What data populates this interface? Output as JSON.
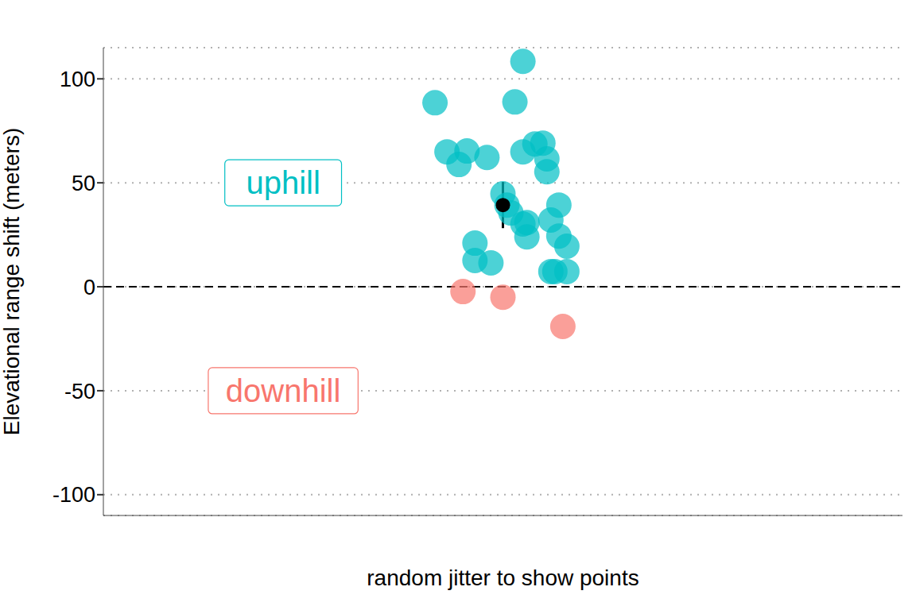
{
  "chart_data": {
    "type": "scatter",
    "ylabel": "Elevational range shift (meters)",
    "xlabel": "random jitter to show points",
    "xlim": [
      -1,
      1
    ],
    "ylim": [
      -110,
      115
    ],
    "yticks": [
      -100,
      -50,
      0,
      50,
      100
    ],
    "grid": true,
    "tick_labels": "y",
    "baseline": 0,
    "series": [
      {
        "color": "#00BFC4",
        "x": [
          0.05,
          -0.17,
          0.03,
          -0.14,
          -0.09,
          -0.11,
          -0.04,
          0.05,
          0.08,
          0.1,
          0.11,
          0.11,
          0.0,
          0.01,
          0.02,
          0.05,
          0.06,
          0.06,
          0.12,
          0.14,
          0.14,
          0.16,
          -0.07,
          -0.07,
          -0.03,
          0.12,
          0.13,
          0.16
        ],
        "values": [
          108.4,
          88.5,
          88.9,
          64.9,
          65.3,
          58.8,
          62.2,
          64.9,
          68.7,
          69.1,
          61.5,
          55.3,
          44.7,
          39.3,
          35.5,
          30.2,
          30.9,
          24.0,
          32.1,
          39.3,
          24.4,
          19.5,
          21.0,
          12.6,
          11.5,
          7.3,
          7.3,
          7.3
        ]
      },
      {
        "color": "#F8766D",
        "x": [
          -0.1,
          0.0,
          0.15
        ],
        "values": [
          -2.3,
          -5.0,
          -19.1
        ]
      }
    ],
    "mean": {
      "x": 0,
      "y": 39.3,
      "error": 11.1,
      "color": "#000000"
    },
    "annotations": [
      {
        "text": "uphill",
        "x": -0.55,
        "y": 50,
        "color": "#00BFC4"
      },
      {
        "text": "downhill",
        "x": -0.55,
        "y": -50,
        "color": "#F8766D"
      }
    ]
  }
}
